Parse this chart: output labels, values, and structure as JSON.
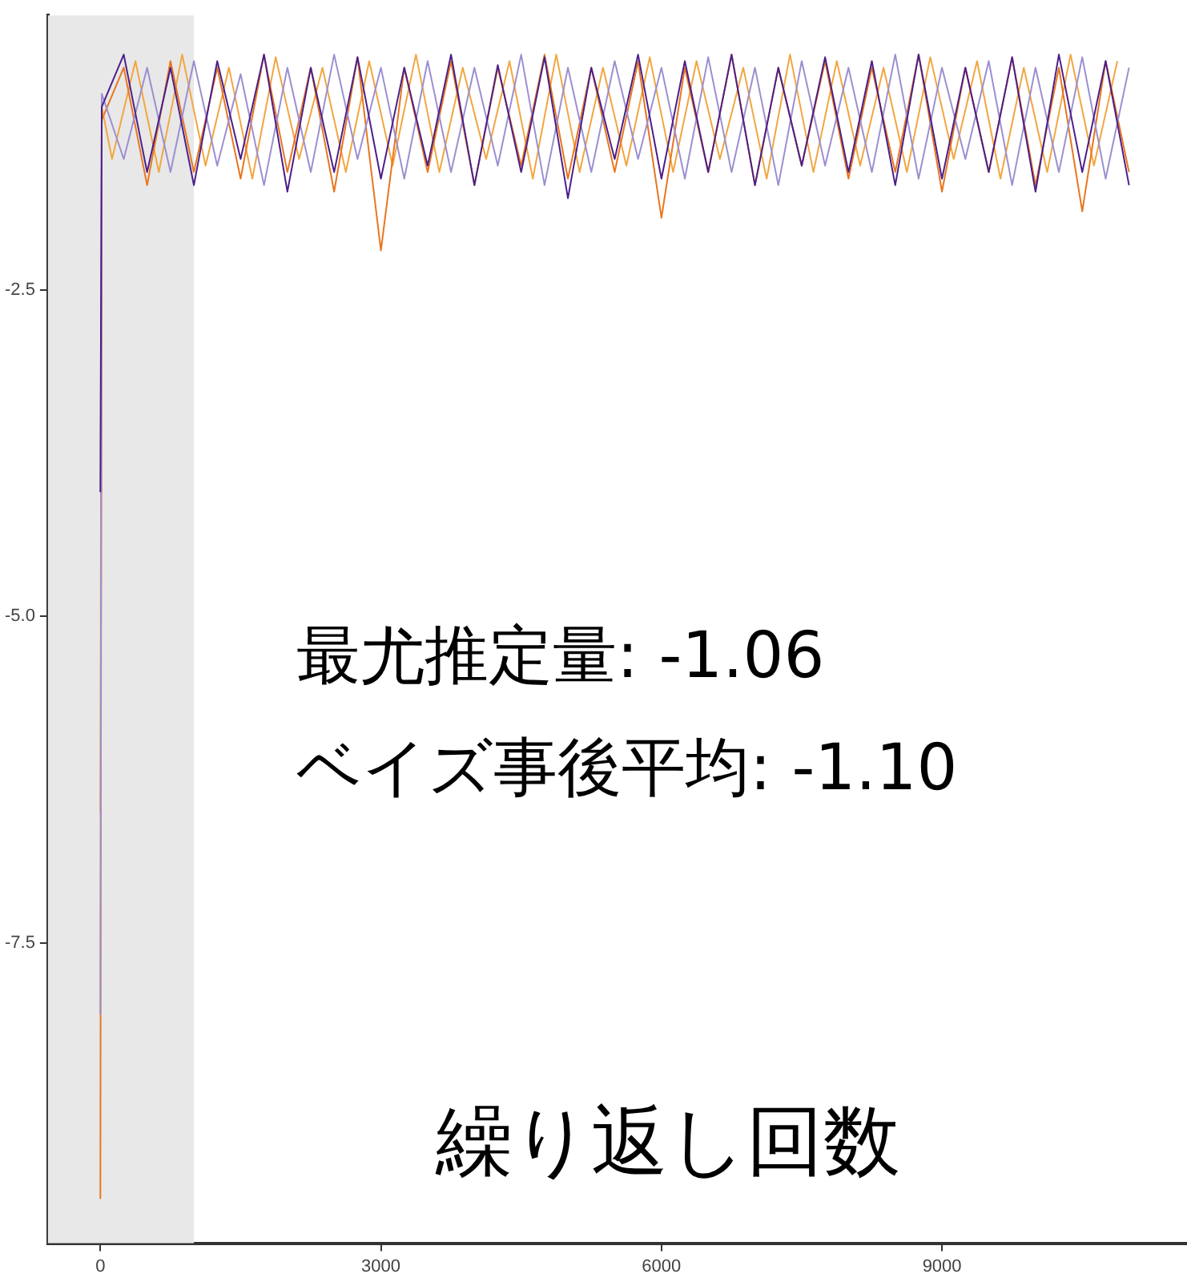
{
  "chart_data": {
    "type": "line",
    "xlabel": "繰り返し回数",
    "annotations": [
      "最尤推定量: -1.06",
      "ベイズ事後平均: -1.10"
    ],
    "x": [
      0,
      15,
      250,
      500,
      750,
      1000,
      1250,
      1500,
      1750,
      2000,
      2250,
      2500,
      2750,
      3000,
      3250,
      3500,
      3750,
      4000,
      4250,
      4500,
      4750,
      5000,
      5250,
      5500,
      5750,
      6000,
      6250,
      6500,
      6750,
      7000,
      7250,
      7500,
      7750,
      8000,
      8250,
      8500,
      8750,
      9000,
      9250,
      9500,
      9750,
      10000,
      10250,
      10500,
      10750,
      11000
    ],
    "series": [
      {
        "color": "#4b1f8a",
        "values": [
          -4.05,
          -1.1,
          -0.7,
          -1.6,
          -0.8,
          -1.7,
          -0.75,
          -1.5,
          -0.7,
          -1.75,
          -0.8,
          -1.6,
          -0.72,
          -1.65,
          -0.8,
          -1.55,
          -0.7,
          -1.7,
          -0.78,
          -1.6,
          -0.72,
          -1.8,
          -0.8,
          -1.5,
          -0.7,
          -1.65,
          -0.75,
          -1.6,
          -0.7,
          -1.7,
          -0.8,
          -1.55,
          -0.72,
          -1.6,
          -0.75,
          -1.7,
          -0.7,
          -1.65,
          -0.8,
          -1.6,
          -0.72,
          -1.75,
          -0.7,
          -1.6,
          -0.75,
          -1.7
        ]
      },
      {
        "color": "#9c8fd0",
        "values": [
          -8.05,
          -1.0,
          -1.5,
          -0.8,
          -1.6,
          -0.75,
          -1.55,
          -0.85,
          -1.7,
          -0.8,
          -1.6,
          -0.7,
          -1.5,
          -0.8,
          -1.65,
          -0.75,
          -1.6,
          -0.8,
          -1.55,
          -0.7,
          -1.7,
          -0.8,
          -1.6,
          -0.75,
          -1.5,
          -0.8,
          -1.65,
          -0.72,
          -1.6,
          -0.8,
          -1.7,
          -0.75,
          -1.55,
          -0.8,
          -1.6,
          -0.7,
          -1.65,
          -0.8,
          -1.5,
          -0.75,
          -1.7,
          -0.8,
          -1.6,
          -0.72,
          -1.65,
          -0.8
        ]
      },
      {
        "color": "#e8761e",
        "values": [
          -9.46,
          -1.2,
          -0.8,
          -1.7,
          -0.75,
          -1.6,
          -0.8,
          -1.65,
          -0.7,
          -1.6,
          -0.8,
          -1.75,
          -0.72,
          -2.2,
          -0.8,
          -1.6,
          -0.75,
          -1.7,
          -0.8,
          -1.55,
          -0.7,
          -1.65,
          -0.8,
          -1.6,
          -0.75,
          -1.95,
          -0.8,
          -1.6,
          -0.7,
          -1.7,
          -0.8,
          -1.55,
          -0.75,
          -1.65,
          -0.8,
          -1.6,
          -0.7,
          -1.75,
          -0.8,
          -1.6,
          -0.72,
          -1.7,
          -0.8,
          -1.9,
          -0.75,
          -1.6
        ]
      },
      {
        "color": "#f2a640",
        "x": [
          0,
          15,
          125,
          375,
          625,
          875,
          1125,
          1375,
          1625,
          1875,
          2125,
          2375,
          2625,
          2875,
          3125,
          3375,
          3625,
          3875,
          4125,
          4375,
          4625,
          4875,
          5125,
          5375,
          5625,
          5875,
          6125,
          6375,
          6625,
          6875,
          7125,
          7375,
          7625,
          7875,
          8125,
          8375,
          8625,
          8875,
          9125,
          9375,
          9625,
          9875,
          10125,
          10375,
          10625,
          10875
        ],
        "values": [
          -6.5,
          -1.1,
          -1.5,
          -0.75,
          -1.6,
          -0.7,
          -1.55,
          -0.8,
          -1.65,
          -0.72,
          -1.5,
          -0.8,
          -1.6,
          -0.75,
          -1.55,
          -0.7,
          -1.6,
          -0.8,
          -1.5,
          -0.75,
          -1.65,
          -0.7,
          -1.6,
          -0.8,
          -1.55,
          -0.72,
          -1.6,
          -0.75,
          -1.5,
          -0.8,
          -1.65,
          -0.7,
          -1.6,
          -0.75,
          -1.55,
          -0.8,
          -1.6,
          -0.72,
          -1.5,
          -0.75,
          -1.65,
          -0.8,
          -1.6,
          -0.7,
          -1.55,
          -0.75
        ]
      }
    ],
    "xlim": [
      -560,
      11620
    ],
    "xticks": [
      0,
      3000,
      6000,
      9000
    ],
    "ylim": [
      -9.8,
      -0.4
    ],
    "yticks": [
      {
        "value": -2.5,
        "label": "-2.5"
      },
      {
        "value": -5,
        "label": "-5.0"
      },
      {
        "value": -7.5,
        "label": "-7.5"
      }
    ],
    "bands": [
      {
        "axis": "x",
        "from": -560,
        "to": 1000,
        "color": "#e8e8e8"
      }
    ],
    "grid": false,
    "legend": false,
    "marker": "none",
    "line_style": "solid"
  }
}
